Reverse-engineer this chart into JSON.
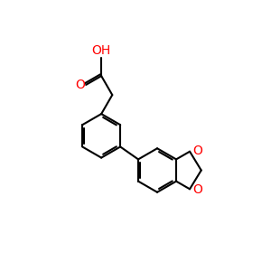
{
  "bg_color": "#ffffff",
  "bond_color": "#000000",
  "oxygen_color": "#ff0000",
  "lw": 1.5,
  "fig_size": [
    3.0,
    3.0
  ],
  "dpi": 100,
  "xlim": [
    0,
    10
  ],
  "ylim": [
    0,
    10
  ]
}
